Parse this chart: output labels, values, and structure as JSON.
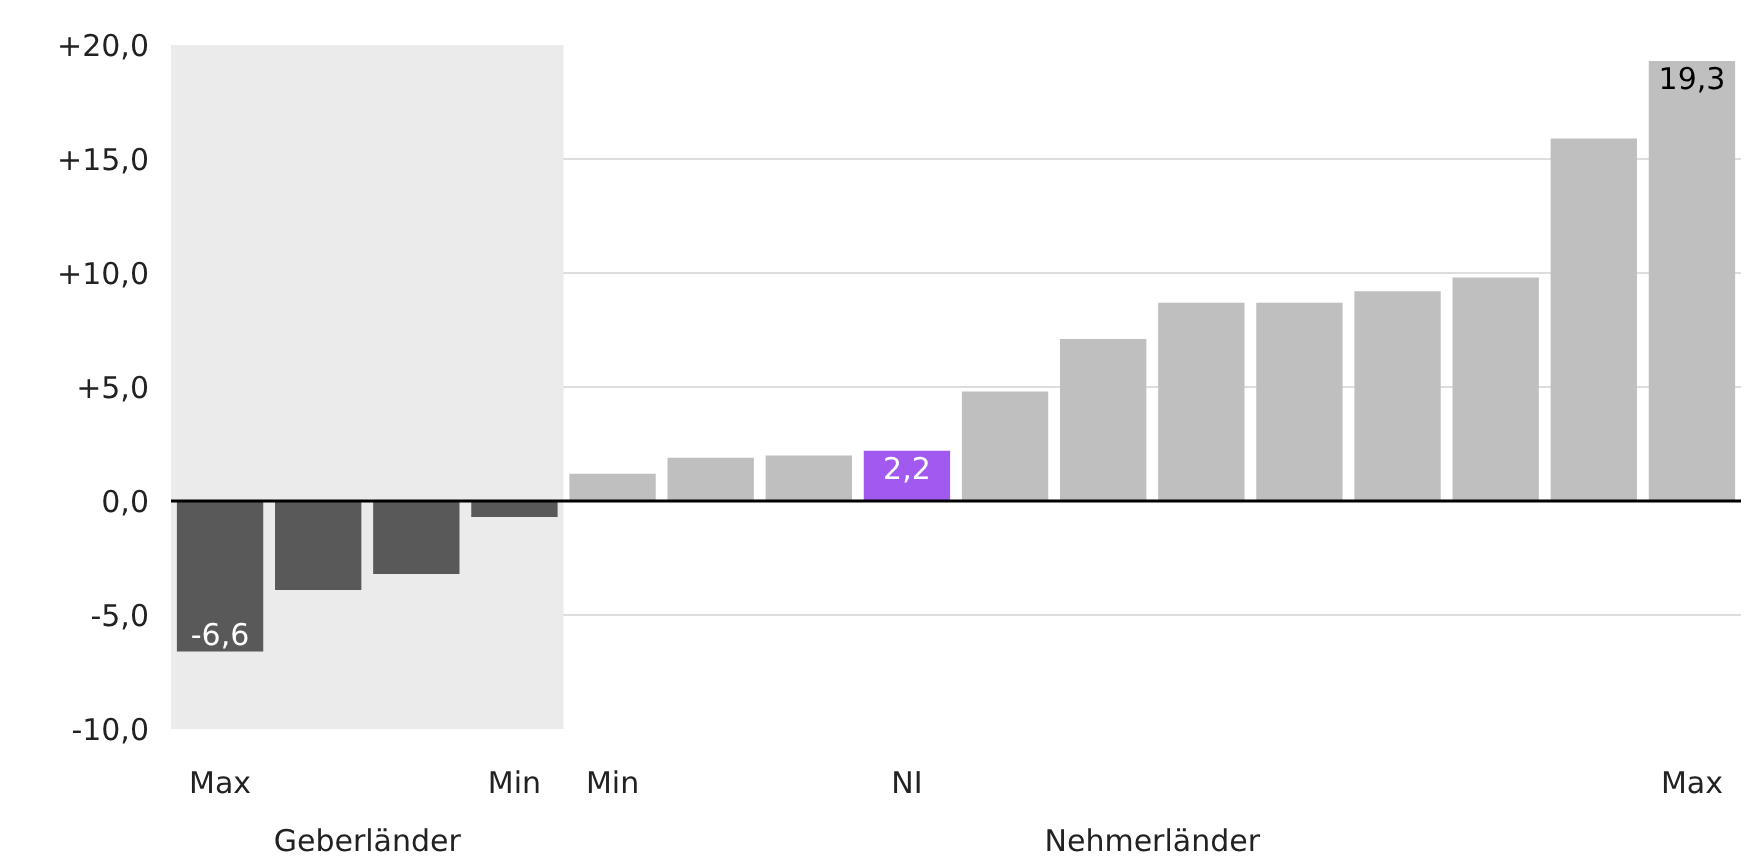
{
  "chart_data": {
    "type": "bar",
    "categories": [
      "Max",
      null,
      null,
      "Min",
      "Min",
      null,
      null,
      "NI",
      null,
      null,
      null,
      null,
      null,
      null,
      null,
      "Max"
    ],
    "values": [
      -6.6,
      -3.9,
      -3.2,
      -0.7,
      1.2,
      1.9,
      2.0,
      2.2,
      4.8,
      7.1,
      8.7,
      8.7,
      9.2,
      9.8,
      15.9,
      19.3
    ],
    "colors": [
      "#595959",
      "#595959",
      "#595959",
      "#595959",
      "#bfbfbf",
      "#bfbfbf",
      "#bfbfbf",
      "#a259f0",
      "#bfbfbf",
      "#bfbfbf",
      "#bfbfbf",
      "#bfbfbf",
      "#bfbfbf",
      "#bfbfbf",
      "#bfbfbf",
      "#bfbfbf"
    ],
    "value_labels": [
      "-6,6",
      null,
      null,
      null,
      null,
      null,
      null,
      "2,2",
      null,
      null,
      null,
      null,
      null,
      null,
      null,
      "19,3"
    ],
    "ylim": [
      -10,
      20
    ],
    "yticks": [
      {
        "value": -10,
        "label": "-10,0"
      },
      {
        "value": -5,
        "label": "-5,0"
      },
      {
        "value": 0,
        "label": "0,0"
      },
      {
        "value": 5,
        "label": "+5,0"
      },
      {
        "value": 10,
        "label": "+10,0"
      },
      {
        "value": 15,
        "label": "+15,0"
      },
      {
        "value": 20,
        "label": "+20,0"
      }
    ],
    "grid": "y",
    "ref_lines": [
      {
        "axis": "y",
        "value": 0,
        "label": null,
        "color": "#000000"
      }
    ],
    "annotations": [
      "Geberländer",
      "Nehmerländer"
    ]
  }
}
